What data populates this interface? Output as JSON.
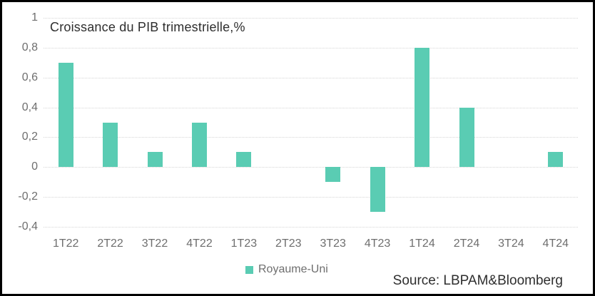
{
  "chart": {
    "title": "Croissance du PIB trimestrielle,%",
    "legend_label": "Royaume-Uni",
    "source": "Source: LBPAM&Bloomberg"
  },
  "colors": {
    "bar": "#5accb3",
    "gridline": "#d5d5d5",
    "axis_text": "#6e6e6e",
    "title_text": "#2e2e2e",
    "frame_border": "#000000",
    "background": "#ffffff"
  },
  "chart_data": {
    "type": "bar",
    "title": "Croissance du PIB trimestrielle,%",
    "categories": [
      "1T22",
      "2T22",
      "3T22",
      "4T22",
      "1T23",
      "2T23",
      "3T23",
      "4T23",
      "1T24",
      "2T24",
      "3T24",
      "4T24"
    ],
    "series": [
      {
        "name": "Royaume-Uni",
        "color": "#5accb3",
        "values": [
          0.7,
          0.3,
          0.1,
          0.3,
          0.1,
          0,
          -0.1,
          -0.3,
          0.8,
          0.4,
          0,
          0.1
        ]
      }
    ],
    "xlabel": "",
    "ylabel": "",
    "ylim": [
      -0.4,
      1
    ],
    "yticks": [
      {
        "value": 1,
        "label": "1"
      },
      {
        "value": 0.8,
        "label": "0,8"
      },
      {
        "value": 0.6,
        "label": "0,6"
      },
      {
        "value": 0.4,
        "label": "0,4"
      },
      {
        "value": 0.2,
        "label": "0,2"
      },
      {
        "value": 0,
        "label": "0"
      },
      {
        "value": -0.2,
        "label": "-0,2"
      },
      {
        "value": -0.4,
        "label": "-0,4"
      }
    ],
    "grid": "horizontal dotted",
    "legend_position": "bottom",
    "source": "Source: LBPAM&Bloomberg"
  }
}
